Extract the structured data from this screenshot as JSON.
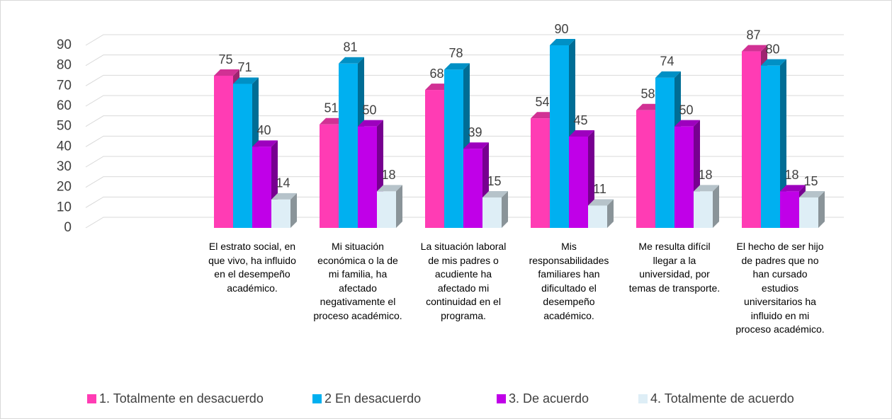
{
  "chart_data": {
    "type": "bar",
    "categories": [
      "El estrato social, en que vivo, ha influido en el desempeño académico.",
      "Mi situación económica o la de mi familia,  ha afectado negativamente el proceso académico.",
      "La situación laboral de mis padres o acudiente ha afectado mi continuidad en el programa.",
      "Mis responsabilidades familiares han dificultado el desempeño académico.",
      "Me resulta difícil llegar a la universidad, por temas de transporte.",
      "El hecho de ser hijo de padres que no han cursado estudios universitarios ha influido en mi proceso académico."
    ],
    "series": [
      {
        "name": "1. Totalmente en desacuerdo",
        "color": "#ff3cb4",
        "values": [
          75,
          51,
          68,
          54,
          58,
          87
        ]
      },
      {
        "name": "2 En desacuerdo",
        "color": "#00b0f0",
        "values": [
          71,
          81,
          78,
          90,
          74,
          80
        ]
      },
      {
        "name": "3. De acuerdo",
        "color": "#c000e8",
        "values": [
          40,
          50,
          39,
          45,
          50,
          18
        ]
      },
      {
        "name": "4. Totalmente de acuerdo",
        "color": "#deeef6",
        "values": [
          14,
          18,
          15,
          11,
          18,
          15
        ]
      }
    ],
    "ylim": [
      0,
      90
    ],
    "yticks": [
      0,
      10,
      20,
      30,
      40,
      50,
      60,
      70,
      80,
      90
    ],
    "grid": true,
    "legend": "bottom"
  }
}
